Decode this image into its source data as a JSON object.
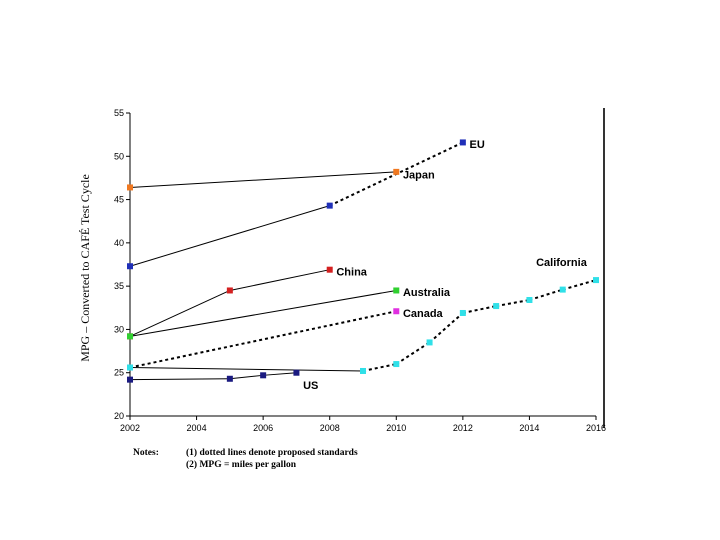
{
  "chart_data": {
    "type": "line",
    "title": "",
    "xlabel": "",
    "ylabel": "MPG – Converted to CAFÉ Test Cycle",
    "xlim": [
      2002,
      2016
    ],
    "ylim": [
      20,
      55
    ],
    "x_ticks": [
      2002,
      2004,
      2006,
      2008,
      2010,
      2012,
      2014,
      2016
    ],
    "y_ticks": [
      20,
      25,
      30,
      35,
      40,
      45,
      50,
      55
    ],
    "grid": false,
    "legend": "none",
    "series": [
      {
        "name": "EU",
        "color": "#1f2fb8",
        "points": [
          [
            2002,
            37.3
          ],
          [
            2008,
            44.3
          ],
          [
            2012,
            51.6
          ]
        ],
        "segment_styles": [
          "solid",
          "dotted"
        ],
        "label_at": [
          2012.2,
          51.4
        ]
      },
      {
        "name": "Japan",
        "color": "#f07820",
        "points": [
          [
            2002,
            46.4
          ],
          [
            2010,
            48.2
          ]
        ],
        "segment_styles": [
          "solid"
        ],
        "label_at": [
          2010.2,
          47.9
        ]
      },
      {
        "name": "China",
        "color": "#d42020",
        "points": [
          [
            2002,
            29.2
          ],
          [
            2005,
            34.5
          ],
          [
            2008,
            36.9
          ]
        ],
        "segment_styles": [
          "solid",
          "solid"
        ],
        "label_at": [
          2008.2,
          36.7
        ]
      },
      {
        "name": "Australia",
        "color": "#30d030",
        "points": [
          [
            2002,
            29.2
          ],
          [
            2010,
            34.5
          ]
        ],
        "segment_styles": [
          "solid"
        ],
        "label_at": [
          2010.2,
          34.3
        ]
      },
      {
        "name": "Canada",
        "color": "#e030e0",
        "points": [
          [
            2002,
            25.6
          ],
          [
            2010,
            32.1
          ]
        ],
        "segment_styles": [
          "dotted"
        ],
        "label_at": [
          2010.2,
          31.9
        ]
      },
      {
        "name": "California",
        "color": "#30e0e8",
        "points": [
          [
            2002,
            25.6
          ],
          [
            2009,
            25.2
          ],
          [
            2010,
            26.0
          ],
          [
            2011,
            28.5
          ],
          [
            2012,
            31.9
          ],
          [
            2013,
            32.7
          ],
          [
            2014,
            33.4
          ],
          [
            2015,
            34.6
          ],
          [
            2016,
            35.7
          ]
        ],
        "segment_styles": [
          "solid",
          "dotted",
          "dotted",
          "dotted",
          "dotted",
          "dotted",
          "dotted",
          "dotted"
        ],
        "label_at": [
          2014.2,
          37.8
        ]
      },
      {
        "name": "US",
        "color": "#1a1a80",
        "points": [
          [
            2002,
            24.2
          ],
          [
            2005,
            24.3
          ],
          [
            2006,
            24.7
          ],
          [
            2007,
            25.0
          ]
        ],
        "segment_styles": [
          "solid",
          "solid",
          "solid"
        ],
        "label_at": [
          2007.2,
          23.6
        ]
      }
    ]
  },
  "notes": {
    "title": "Notes:",
    "lines": [
      "(1) dotted lines denote proposed standards",
      "(2) MPG = miles per gallon"
    ]
  }
}
